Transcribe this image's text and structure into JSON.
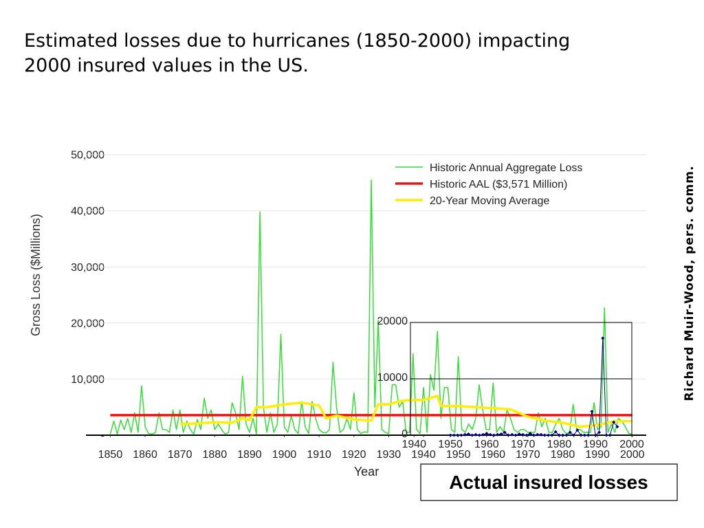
{
  "credit": "Richard Muir-Wood, pers. comm.",
  "caption": "Actual insured losses",
  "chart_data": [
    {
      "type": "line",
      "title": [
        "Estimated losses due to hurricanes (1850-2000) impacting",
        "2000 insured values in the US."
      ],
      "x_label": "Year",
      "y_label": "Gross Loss ($Millions)",
      "xlim": [
        1843,
        2004
      ],
      "ylim": [
        0,
        50000
      ],
      "xticks": [
        1850,
        1860,
        1870,
        1880,
        1890,
        1900,
        1910,
        1920,
        1930,
        1940,
        1950,
        1960,
        1970,
        1980,
        1990,
        2000
      ],
      "yticks": [
        {
          "value": 0,
          "label": "-"
        },
        {
          "value": 10000,
          "label": "10,000"
        },
        {
          "value": 20000,
          "label": "20,000"
        },
        {
          "value": 30000,
          "label": "30,000"
        },
        {
          "value": 40000,
          "label": "40,000"
        },
        {
          "value": 50000,
          "label": "50,000"
        }
      ],
      "grid": true,
      "legend": "top-right",
      "x": [
        1850,
        1851,
        1852,
        1853,
        1854,
        1855,
        1856,
        1857,
        1858,
        1859,
        1860,
        1861,
        1862,
        1863,
        1864,
        1865,
        1866,
        1867,
        1868,
        1869,
        1870,
        1871,
        1872,
        1873,
        1874,
        1875,
        1876,
        1877,
        1878,
        1879,
        1880,
        1881,
        1882,
        1883,
        1884,
        1885,
        1886,
        1887,
        1888,
        1889,
        1890,
        1891,
        1892,
        1893,
        1894,
        1895,
        1896,
        1897,
        1898,
        1899,
        1900,
        1901,
        1902,
        1903,
        1904,
        1905,
        1906,
        1907,
        1908,
        1909,
        1910,
        1911,
        1912,
        1913,
        1914,
        1915,
        1916,
        1917,
        1918,
        1919,
        1920,
        1921,
        1922,
        1923,
        1924,
        1925,
        1926,
        1927,
        1928,
        1929,
        1930,
        1931,
        1932,
        1933,
        1934,
        1935,
        1936,
        1937,
        1938,
        1939,
        1940,
        1941,
        1942,
        1943,
        1944,
        1945,
        1946,
        1947,
        1948,
        1949,
        1950,
        1951,
        1952,
        1953,
        1954,
        1955,
        1956,
        1957,
        1958,
        1959,
        1960,
        1961,
        1962,
        1963,
        1964,
        1965,
        1966,
        1967,
        1968,
        1969,
        1970,
        1971,
        1972,
        1973,
        1974,
        1975,
        1976,
        1977,
        1978,
        1979,
        1980,
        1981,
        1982,
        1983,
        1984,
        1985,
        1986,
        1987,
        1988,
        1989,
        1990,
        1991,
        1992,
        1993,
        1994,
        1995,
        1996,
        1997,
        1998,
        1999,
        2000
      ],
      "series": [
        {
          "name": "Historic Annual Aggregate Loss",
          "color": "#33dd33",
          "width": 1.5,
          "values": [
            200,
            2500,
            200,
            2700,
            1000,
            3000,
            500,
            4000,
            500,
            8800,
            1500,
            300,
            200,
            500,
            4000,
            1000,
            1000,
            500,
            4500,
            1000,
            4500,
            500,
            2500,
            1000,
            200,
            2800,
            1000,
            6600,
            3000,
            4500,
            1000,
            2000,
            1000,
            200,
            500,
            5800,
            4000,
            1000,
            10500,
            2000,
            500,
            3000,
            200,
            39800,
            5000,
            500,
            4000,
            500,
            2000,
            18000,
            1500,
            500,
            3500,
            1000,
            300,
            6000,
            1500,
            300,
            6000,
            3000,
            1000,
            500,
            400,
            1000,
            13000,
            5000,
            500,
            1000,
            3000,
            1000,
            7500,
            1000,
            300,
            600,
            500,
            45500,
            5000,
            20500,
            1000,
            500,
            300,
            9000,
            9000,
            5000,
            6000,
            500,
            500,
            14500,
            1000,
            300,
            8500,
            500,
            10800,
            8000,
            18500,
            3000,
            8500,
            8500,
            1000,
            500,
            14000,
            1000,
            500,
            2000,
            1000,
            3000,
            9000,
            4500,
            1000,
            1000,
            9300,
            500,
            1500,
            500,
            4500,
            3000,
            1000,
            500,
            1000,
            1000,
            500,
            500,
            500,
            4000,
            1500,
            3000,
            500,
            500,
            2000,
            3000,
            1000,
            300,
            500,
            5500,
            1000,
            1000,
            500,
            500,
            500,
            5800,
            1000,
            1500,
            22700,
            500,
            2000,
            500,
            3000,
            2500,
            1500,
            300,
            200
          ]
        },
        {
          "name": "Historic AAL ($3,571 Million)",
          "color": "#ee1111",
          "width": 3.5,
          "x": [
            1850,
            2000
          ],
          "values": [
            3571,
            3571
          ]
        },
        {
          "name": "20-Year Moving Average",
          "color": "#ffee00",
          "width": 3.5,
          "x": [
            1870,
            1875,
            1880,
            1885,
            1888,
            1890,
            1892,
            1895,
            1900,
            1905,
            1910,
            1912,
            1915,
            1920,
            1925,
            1927,
            1930,
            1933,
            1935,
            1940,
            1944,
            1945,
            1950,
            1955,
            1960,
            1965,
            1970,
            1975,
            1980,
            1985,
            1990,
            1995,
            2000
          ],
          "values": [
            2000,
            2100,
            2300,
            2200,
            3000,
            2700,
            5000,
            5000,
            5500,
            5800,
            5300,
            3000,
            3500,
            2800,
            2600,
            5500,
            5500,
            6000,
            6200,
            6300,
            7000,
            5200,
            5200,
            5000,
            4800,
            4600,
            3300,
            2600,
            2200,
            1500,
            1800,
            2500,
            2500
          ]
        }
      ]
    },
    {
      "type": "line",
      "xlim": [
        1939,
        2000
      ],
      "ylim": [
        0,
        20000
      ],
      "xticks": [
        1940,
        1950,
        1960,
        1970,
        1980,
        1990,
        2000
      ],
      "yticks": [
        0,
        10000,
        20000
      ],
      "grid": true,
      "markers": true,
      "x": [
        1950,
        1951,
        1952,
        1953,
        1954,
        1955,
        1956,
        1957,
        1958,
        1959,
        1960,
        1961,
        1962,
        1963,
        1964,
        1965,
        1966,
        1967,
        1968,
        1969,
        1970,
        1971,
        1972,
        1973,
        1974,
        1975,
        1976,
        1977,
        1978,
        1979,
        1980,
        1981,
        1982,
        1983,
        1984,
        1985,
        1986,
        1987,
        1988,
        1989,
        1990,
        1991,
        1992,
        1993,
        1994,
        1995,
        1996
      ],
      "series": [
        {
          "color": "#000080",
          "width": 1,
          "values": [
            0,
            0,
            0,
            0,
            100,
            200,
            0,
            100,
            0,
            100,
            300,
            100,
            0,
            100,
            200,
            500,
            0,
            100,
            0,
            200,
            100,
            0,
            300,
            0,
            100,
            100,
            0,
            0,
            0,
            600,
            0,
            0,
            0,
            500,
            0,
            900,
            0,
            0,
            0,
            4200,
            0,
            500,
            17200,
            0,
            0,
            2300,
            1500
          ]
        }
      ]
    }
  ]
}
